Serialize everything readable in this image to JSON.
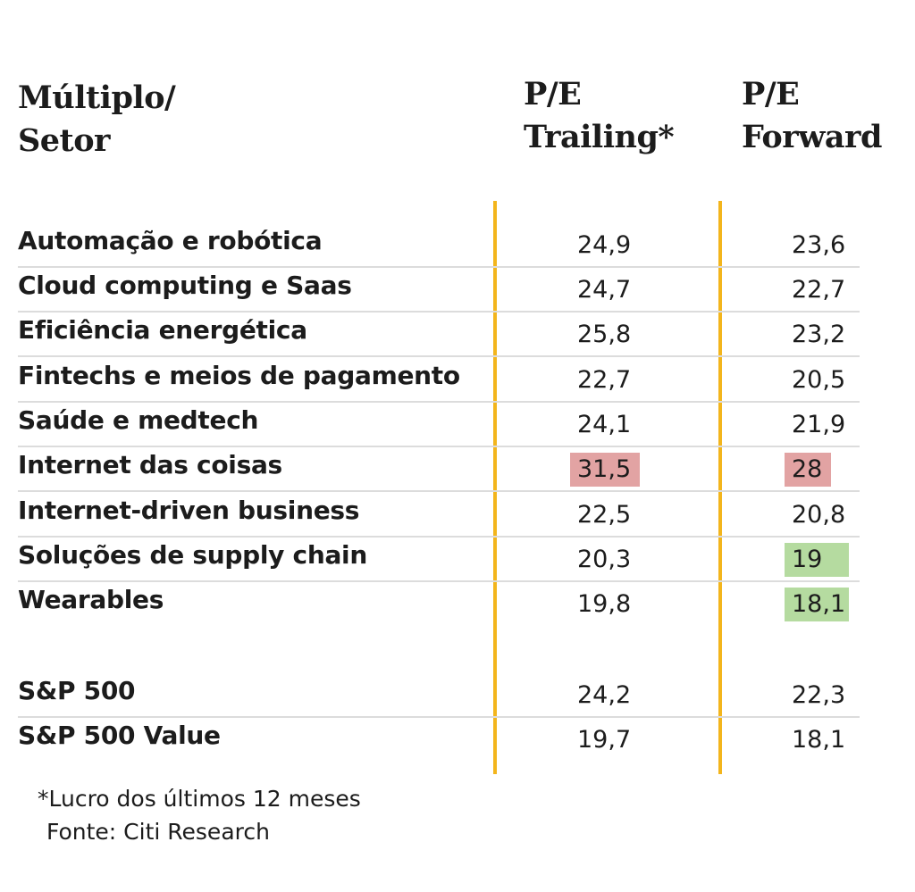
{
  "headers": {
    "sector": [
      "Múltiplo/",
      "Setor"
    ],
    "trailing": [
      "P/E",
      "Trailing*"
    ],
    "forward": [
      "P/E",
      "Forward"
    ]
  },
  "colors": {
    "accent_line": "#f3b51c",
    "highlight_high": "#e2a3a3",
    "highlight_low": "#b5dba0"
  },
  "chart_data": {
    "type": "table",
    "columns": [
      "Múltiplo/ Setor",
      "P/E Trailing*",
      "P/E Forward"
    ],
    "rows": [
      {
        "label": "Automação e robótica",
        "trailing": "24,9",
        "forward": "23,6"
      },
      {
        "label": "Cloud computing e Saas",
        "trailing": "24,7",
        "forward": "22,7"
      },
      {
        "label": "Eficiência energética",
        "trailing": "25,8",
        "forward": "23,2"
      },
      {
        "label": "Fintechs e meios de pagamento",
        "trailing": "22,7",
        "forward": "20,5"
      },
      {
        "label": "Saúde e medtech",
        "trailing": "24,1",
        "forward": "21,9"
      },
      {
        "label": "Internet das coisas",
        "trailing": "31,5",
        "forward": "28",
        "trailing_highlight": "high",
        "forward_highlight": "high"
      },
      {
        "label": "Internet-driven business",
        "trailing": "22,5",
        "forward": "20,8"
      },
      {
        "label": "Soluções de supply chain",
        "trailing": "20,3",
        "forward": "19",
        "forward_highlight": "low"
      },
      {
        "label": "Wearables",
        "trailing": "19,8",
        "forward": "18,1",
        "forward_highlight": "low"
      },
      {
        "label": "S&P 500",
        "trailing": "24,2",
        "forward": "22,3"
      },
      {
        "label": "S&P 500 Value",
        "trailing": "19,7",
        "forward": "18,1"
      }
    ]
  },
  "footnote": "*Lucro dos últimos 12 meses",
  "source": "Fonte: Citi Research"
}
